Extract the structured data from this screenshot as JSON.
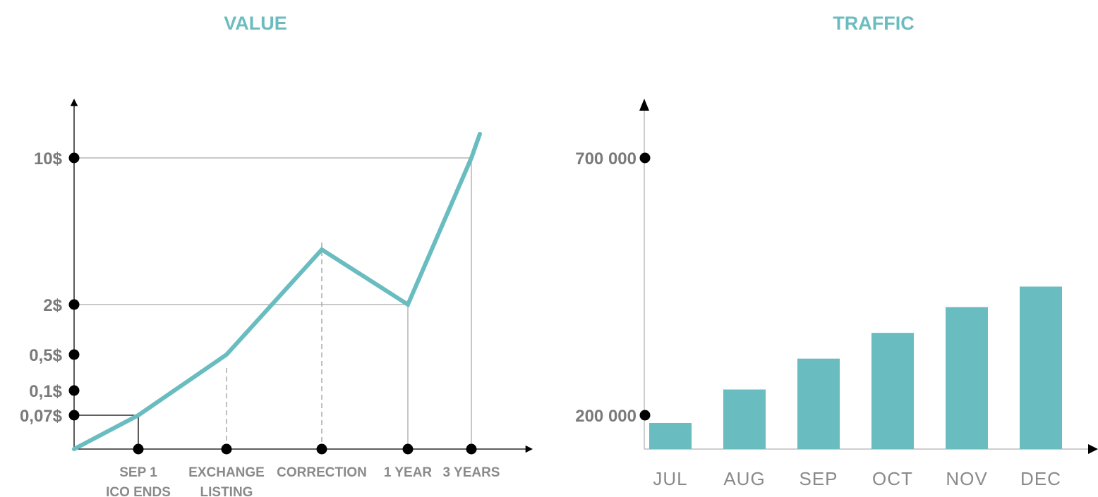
{
  "colors": {
    "accent": "#69bcc0",
    "axis": "#000000",
    "grid": "#b5b5b5",
    "text": "#7a7a7a"
  },
  "chart_data": [
    {
      "type": "line",
      "title": "VALUE",
      "xlabel": "",
      "ylabel": "",
      "y_scale": "nonlinear (labeled ticks only)",
      "y_ticks": [
        "10$",
        "2$",
        "0,5$",
        "0,1$",
        "0,07$"
      ],
      "x_ticks": [
        {
          "line1": "SEP 1",
          "line2": "ICO ENDS"
        },
        {
          "line1": "EXCHANGE",
          "line2": "LISTING"
        },
        {
          "line1": "CORRECTION",
          "line2": ""
        },
        {
          "line1": "1 YEAR",
          "line2": ""
        },
        {
          "line1": "3 YEARS",
          "line2": ""
        }
      ],
      "series": [
        {
          "points": [
            {
              "x": "start",
              "y": 0
            },
            {
              "x": "SEP 1",
              "y": 0.07
            },
            {
              "x": "EXCHANGE LISTING",
              "y": 0.5
            },
            {
              "x": "CORRECTION",
              "y": 5
            },
            {
              "x": "1 YEAR",
              "y": 2
            },
            {
              "x": "3 YEARS",
              "y": 10
            },
            {
              "x": "after 3 YEARS",
              "y": 13
            }
          ]
        }
      ],
      "grid": "guide lines to marked points"
    },
    {
      "type": "bar",
      "title": "TRAFFIC",
      "xlabel": "",
      "ylabel": "",
      "y_ticks": [
        "700 000",
        "200 000"
      ],
      "categories": [
        "JUL",
        "AUG",
        "SEP",
        "OCT",
        "NOV",
        "DEC"
      ],
      "values": [
        185000,
        250000,
        310000,
        360000,
        410000,
        450000
      ],
      "ylim": [
        130000,
        700000
      ],
      "grid": false
    }
  ]
}
